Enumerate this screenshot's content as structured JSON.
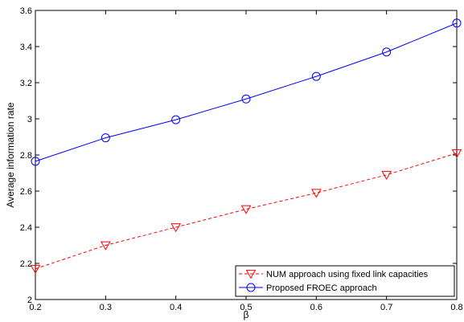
{
  "chart_data": {
    "type": "line",
    "xlabel": "β",
    "ylabel": "Average information rate",
    "xlim": [
      0.2,
      0.8
    ],
    "ylim": [
      2,
      3.6
    ],
    "x_ticks": [
      "0.2",
      "0.3",
      "0.4",
      "0.5",
      "0.6",
      "0.7",
      "0.8"
    ],
    "y_ticks": [
      "2",
      "2.2",
      "2.4",
      "2.6",
      "2.8",
      "3",
      "3.2",
      "3.4",
      "3.6"
    ],
    "x": [
      0.2,
      0.3,
      0.4,
      0.5,
      0.6,
      0.7,
      0.8
    ],
    "grid": false,
    "legend_position": "bottom-right",
    "series": [
      {
        "name": "NUM approach using fixed link capacities",
        "values": [
          2.17,
          2.3,
          2.4,
          2.5,
          2.59,
          2.69,
          2.81
        ],
        "color": "#ff0000",
        "line_style": "dashed",
        "marker": "triangle-down"
      },
      {
        "name": "Proposed FROEC approach",
        "values": [
          2.765,
          2.895,
          2.995,
          3.11,
          3.235,
          3.37,
          3.53
        ],
        "color": "#0000ff",
        "line_style": "solid",
        "marker": "circle"
      }
    ]
  }
}
